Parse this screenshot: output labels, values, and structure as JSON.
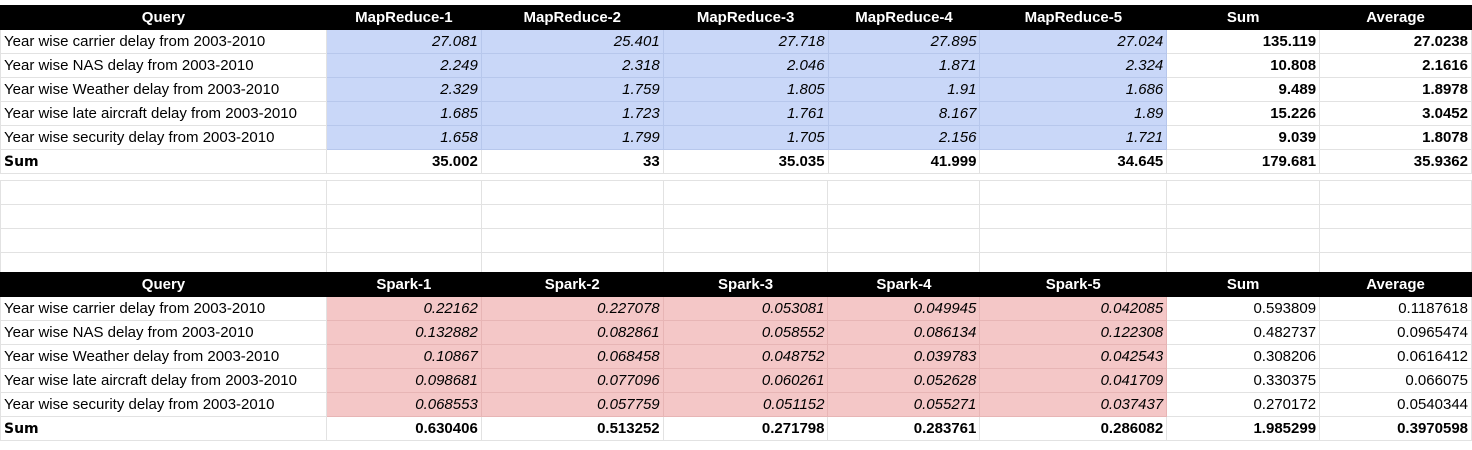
{
  "mapreduce_table": {
    "headers": [
      "Query",
      "MapReduce-1",
      "MapReduce-2",
      "MapReduce-3",
      "MapReduce-4",
      "MapReduce-5",
      "Sum",
      "Average"
    ],
    "rows": [
      [
        "Year wise carrier delay from 2003-2010",
        "27.081",
        "25.401",
        "27.718",
        "27.895",
        "27.024",
        "135.119",
        "27.0238"
      ],
      [
        "Year wise NAS delay from 2003-2010",
        "2.249",
        "2.318",
        "2.046",
        "1.871",
        "2.324",
        "10.808",
        "2.1616"
      ],
      [
        "Year wise Weather delay from 2003-2010",
        "2.329",
        "1.759",
        "1.805",
        "1.91",
        "1.686",
        "9.489",
        "1.8978"
      ],
      [
        "Year wise late aircraft delay from 2003-2010",
        "1.685",
        "1.723",
        "1.761",
        "8.167",
        "1.89",
        "15.226",
        "3.0452"
      ],
      [
        "Year wise security delay from 2003-2010",
        "1.658",
        "1.799",
        "1.705",
        "2.156",
        "1.721",
        "9.039",
        "1.8078"
      ]
    ],
    "sum_row": [
      "Sum",
      "35.002",
      "33",
      "35.035",
      "41.999",
      "34.645",
      "179.681",
      "35.9362"
    ]
  },
  "spark_table": {
    "headers": [
      "Query",
      "Spark-1",
      "Spark-2",
      "Spark-3",
      "Spark-4",
      "Spark-5",
      "Sum",
      "Average"
    ],
    "rows": [
      [
        "Year wise carrier delay from 2003-2010",
        "0.22162",
        "0.227078",
        "0.053081",
        "0.049945",
        "0.042085",
        "0.593809",
        "0.1187618"
      ],
      [
        "Year wise NAS delay from 2003-2010",
        "0.132882",
        "0.082861",
        "0.058552",
        "0.086134",
        "0.122308",
        "0.482737",
        "0.0965474"
      ],
      [
        "Year wise Weather delay from 2003-2010",
        "0.10867",
        "0.068458",
        "0.048752",
        "0.039783",
        "0.042543",
        "0.308206",
        "0.0616412"
      ],
      [
        "Year wise late aircraft delay from 2003-2010",
        "0.098681",
        "0.077096",
        "0.060261",
        "0.052628",
        "0.041709",
        "0.330375",
        "0.066075"
      ],
      [
        "Year wise security delay from 2003-2010",
        "0.068553",
        "0.057759",
        "0.051152",
        "0.055271",
        "0.037437",
        "0.270172",
        "0.0540344"
      ]
    ],
    "sum_row": [
      "Sum",
      "0.630406",
      "0.513252",
      "0.271798",
      "0.283761",
      "0.286082",
      "1.985299",
      "0.3970598"
    ]
  },
  "colors": {
    "mapreduce_fill": "#c9d7f8",
    "spark_fill": "#f4c7c7",
    "header_bg": "#000000",
    "header_text": "#ffffff",
    "gridline": "#e2e2e2"
  }
}
